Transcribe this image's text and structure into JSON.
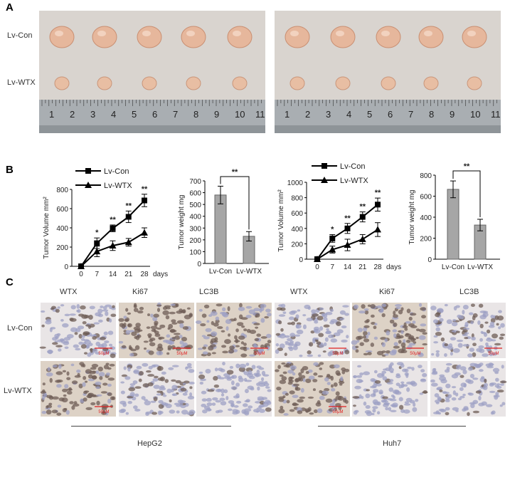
{
  "panels": {
    "a": "A",
    "b": "B",
    "c": "C"
  },
  "photos": {
    "row_labels": [
      "Lv-Con",
      "Lv-WTX"
    ],
    "ruler_numbers": [
      "1",
      "2",
      "3",
      "4",
      "5",
      "6",
      "7",
      "8",
      "9",
      "10",
      "11"
    ]
  },
  "chart_data": [
    {
      "type": "line",
      "cell_line": "HepG2",
      "ylabel": "Tumor Volume mm²",
      "xlabel": "days",
      "x": [
        0,
        7,
        14,
        21,
        28
      ],
      "ylim": [
        0,
        800
      ],
      "yticks": [
        0,
        200,
        400,
        600,
        800
      ],
      "series": [
        {
          "name": "Lv-Con",
          "marker": "square",
          "values": [
            0,
            240,
            395,
            515,
            685
          ],
          "errors": [
            0,
            55,
            35,
            60,
            65
          ]
        },
        {
          "name": "Lv-WTX",
          "marker": "triangle",
          "values": [
            0,
            155,
            215,
            250,
            350
          ],
          "errors": [
            0,
            55,
            50,
            40,
            50
          ]
        }
      ],
      "significance": [
        "",
        "*",
        "**",
        "**",
        "**"
      ],
      "legend": "top-left"
    },
    {
      "type": "bar",
      "cell_line": "HepG2",
      "ylabel": "Tumor weight mg",
      "categories": [
        "Lv-Con",
        "Lv-WTX"
      ],
      "values": [
        580,
        230
      ],
      "errors": [
        75,
        40
      ],
      "ylim": [
        0,
        700
      ],
      "yticks": [
        0,
        100,
        200,
        300,
        400,
        500,
        600,
        700
      ],
      "significance": "**",
      "color": "#a6a6a6"
    },
    {
      "type": "line",
      "cell_line": "Huh7",
      "ylabel": "Tumor Volume mm²",
      "xlabel": "days",
      "x": [
        0,
        7,
        14,
        21,
        28
      ],
      "ylim": [
        0,
        1000
      ],
      "yticks": [
        0,
        200,
        400,
        600,
        800,
        1000
      ],
      "series": [
        {
          "name": "Lv-Con",
          "marker": "square",
          "values": [
            0,
            270,
            400,
            550,
            710
          ],
          "errors": [
            0,
            50,
            65,
            65,
            85
          ]
        },
        {
          "name": "Lv-WTX",
          "marker": "triangle",
          "values": [
            0,
            125,
            185,
            260,
            385
          ],
          "errors": [
            0,
            45,
            75,
            60,
            90
          ]
        }
      ],
      "significance": [
        "",
        "*",
        "**",
        "**",
        "**"
      ],
      "legend": "top-left"
    },
    {
      "type": "bar",
      "cell_line": "Huh7",
      "ylabel": "Tumor weight mg",
      "categories": [
        "Lv-Con",
        "Lv-WTX"
      ],
      "values": [
        665,
        325
      ],
      "errors": [
        80,
        55
      ],
      "ylim": [
        0,
        800
      ],
      "yticks": [
        0,
        200,
        400,
        600,
        800
      ],
      "significance": "**",
      "color": "#a6a6a6"
    }
  ],
  "ihc": {
    "column_headers": [
      "WTX",
      "Ki67",
      "LC3B",
      "WTX",
      "Ki67",
      "LC3B"
    ],
    "row_labels": [
      "Lv-Con",
      "Lv-WTX"
    ],
    "scale_bar": "50μM",
    "groups": [
      "HepG2",
      "Huh7"
    ]
  }
}
